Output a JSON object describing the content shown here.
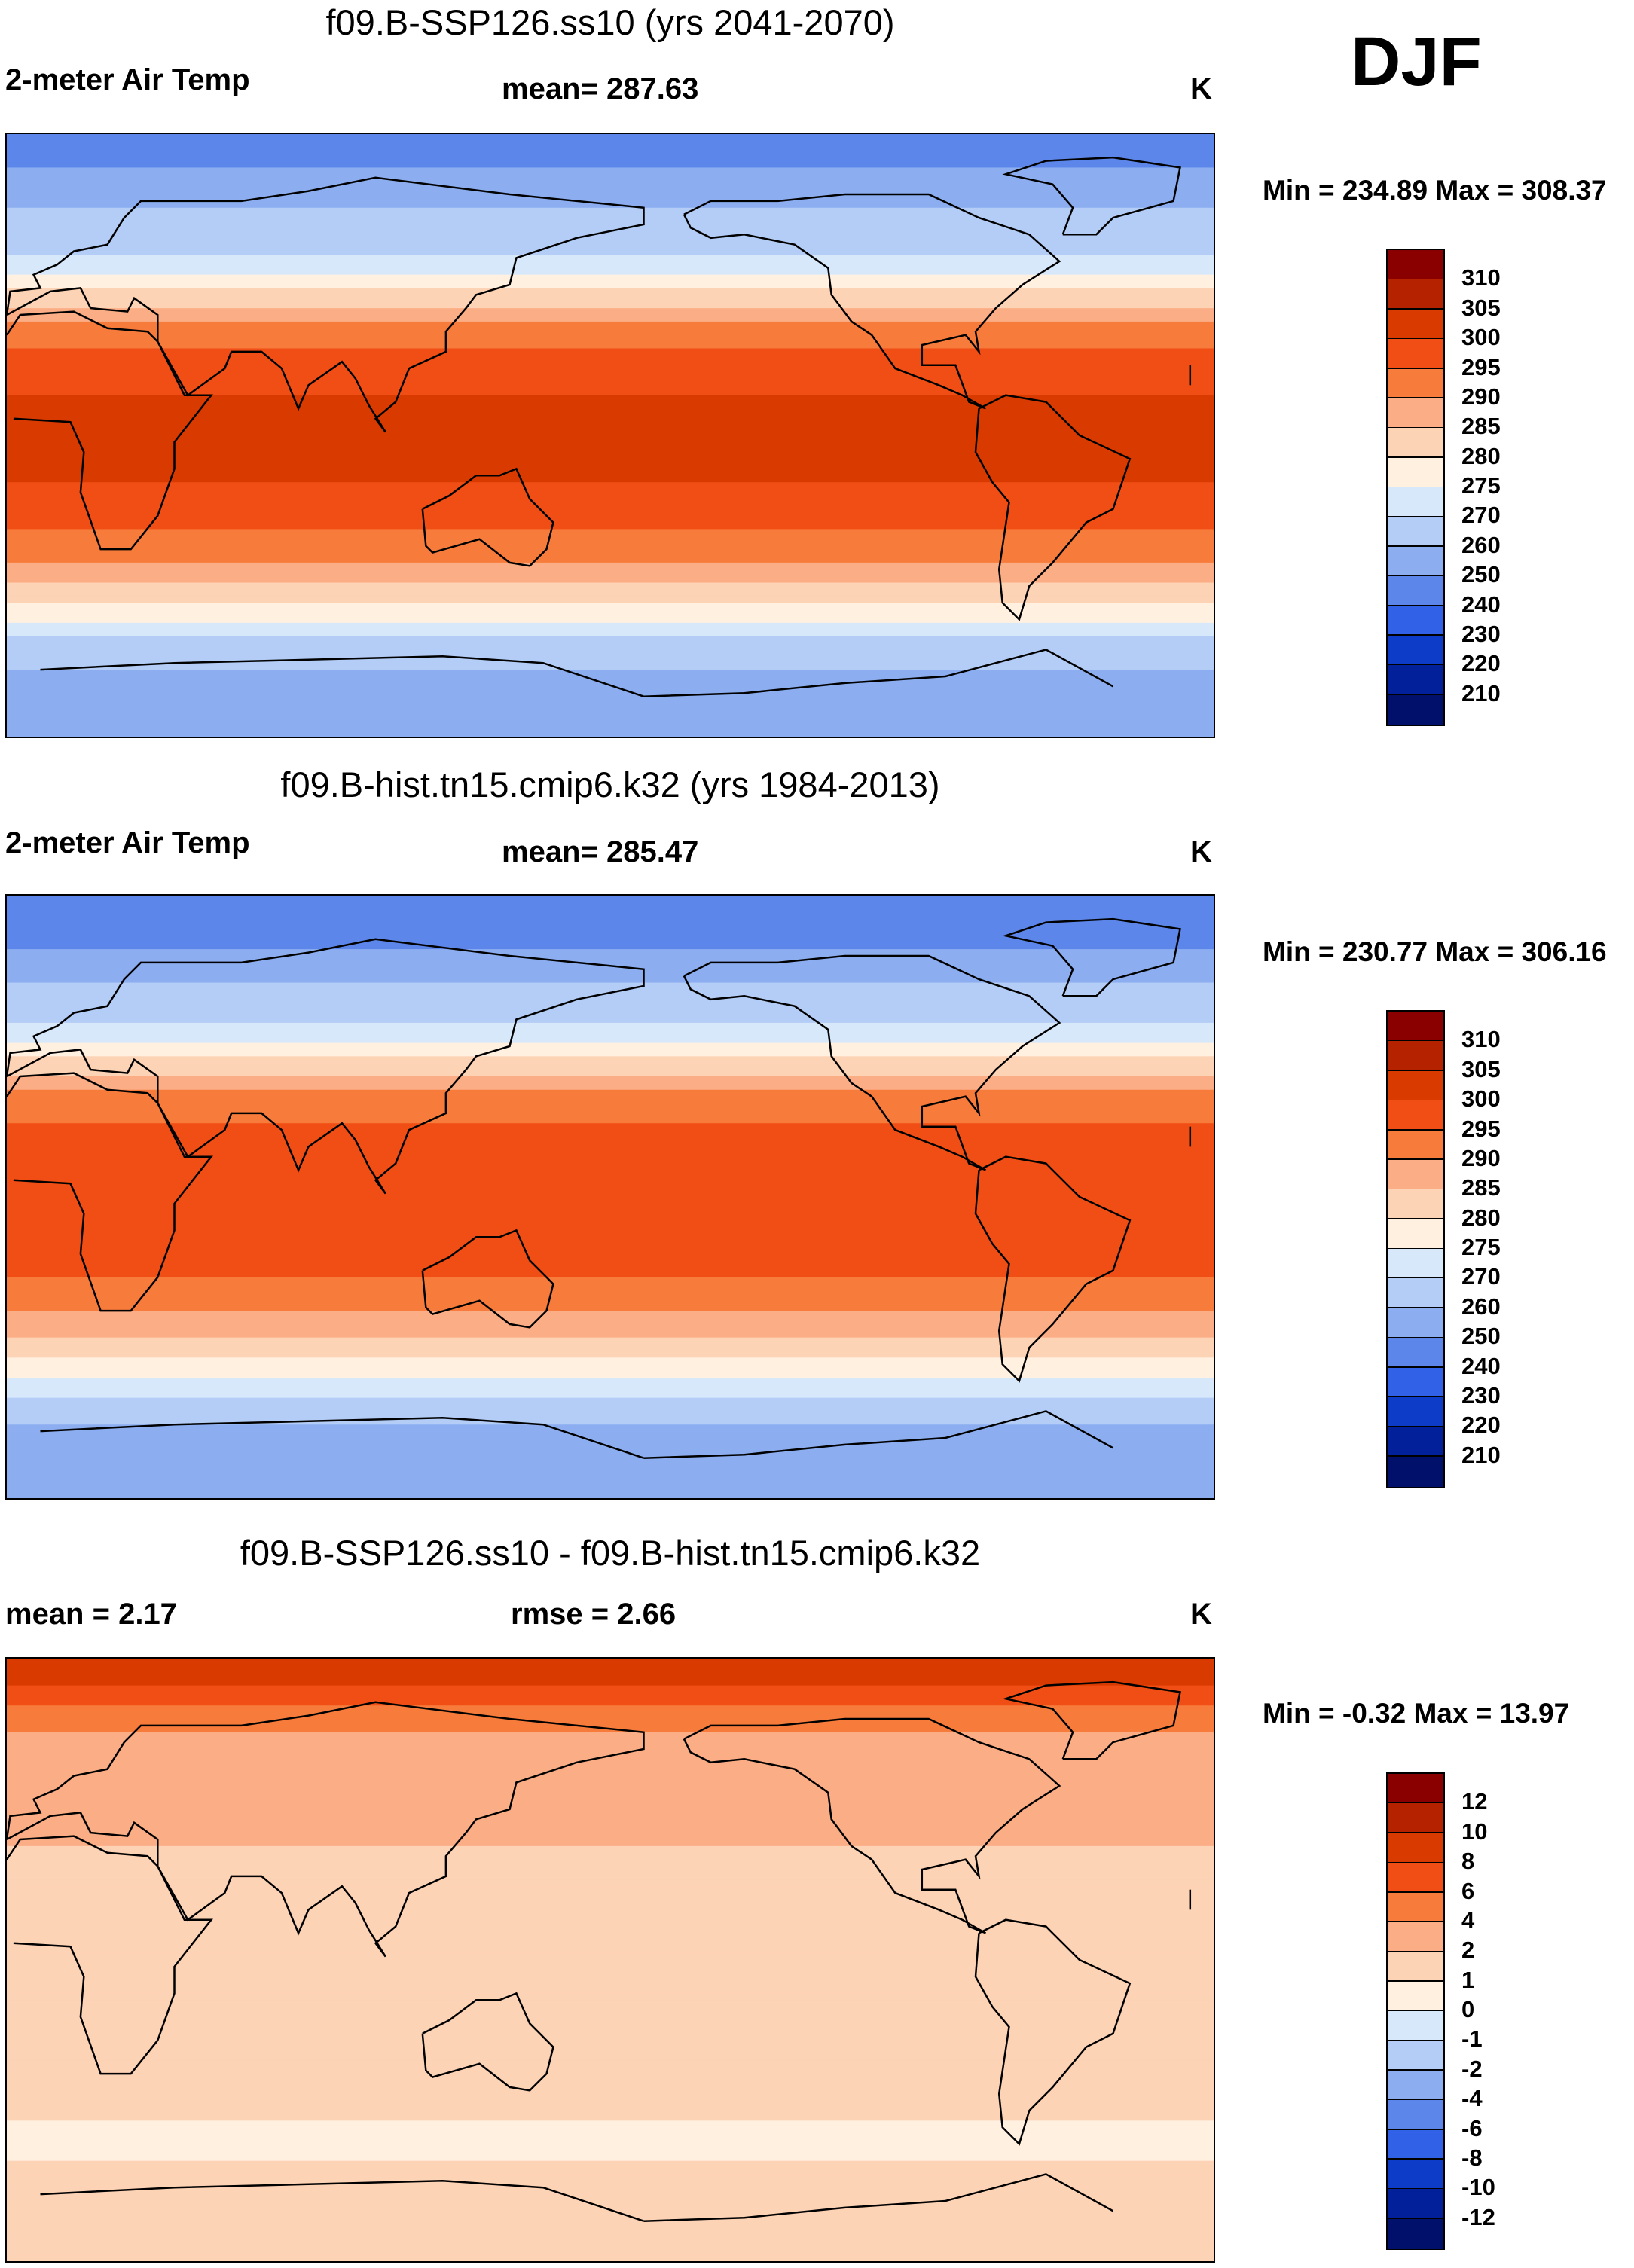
{
  "season_label": "DJF",
  "panels": [
    {
      "id": "future",
      "title": "f09.B-SSP126.ss10 (yrs 2041-2070)",
      "left_label": "2-meter Air Temp",
      "center_label": "mean= 287.63",
      "units": "K",
      "minmax": "Min = 234.89 Max = 308.37",
      "colorbar_labels": [
        "310",
        "305",
        "300",
        "295",
        "290",
        "285",
        "280",
        "275",
        "270",
        "260",
        "250",
        "240",
        "230",
        "220",
        "210"
      ],
      "colorbar_colors": [
        "#8a0000",
        "#b52200",
        "#d83a00",
        "#f04e14",
        "#f77c3c",
        "#fbae86",
        "#fdd3b6",
        "#fff0e0",
        "#d7e8fb",
        "#b4cdf6",
        "#8caef0",
        "#5d86eb",
        "#3161e6",
        "#0d3cc9",
        "#02209a",
        "#00106b"
      ]
    },
    {
      "id": "historical",
      "title": "f09.B-hist.tn15.cmip6.k32 (yrs 1984-2013)",
      "left_label": "2-meter Air Temp",
      "center_label": "mean= 285.47",
      "units": "K",
      "minmax": "Min = 230.77 Max = 306.16",
      "colorbar_labels": [
        "310",
        "305",
        "300",
        "295",
        "290",
        "285",
        "280",
        "275",
        "270",
        "260",
        "250",
        "240",
        "230",
        "220",
        "210"
      ],
      "colorbar_colors": [
        "#8a0000",
        "#b52200",
        "#d83a00",
        "#f04e14",
        "#f77c3c",
        "#fbae86",
        "#fdd3b6",
        "#fff0e0",
        "#d7e8fb",
        "#b4cdf6",
        "#8caef0",
        "#5d86eb",
        "#3161e6",
        "#0d3cc9",
        "#02209a",
        "#00106b"
      ]
    },
    {
      "id": "difference",
      "title": "f09.B-SSP126.ss10 - f09.B-hist.tn15.cmip6.k32",
      "left_label": "mean =   2.17",
      "center_label": "rmse =   2.66",
      "units": "K",
      "minmax": "Min =  -0.32 Max =  13.97",
      "colorbar_labels": [
        "12",
        "10",
        "8",
        "6",
        "4",
        "2",
        "1",
        "0",
        "-1",
        "-2",
        "-4",
        "-6",
        "-8",
        "-10",
        "-12"
      ],
      "colorbar_colors": [
        "#8a0000",
        "#b52200",
        "#d83a00",
        "#f04e14",
        "#f77c3c",
        "#fbae86",
        "#fdd3b6",
        "#fff0e0",
        "#d7e8fb",
        "#b4cdf6",
        "#8caef0",
        "#5d86eb",
        "#3161e6",
        "#0d3cc9",
        "#02209a",
        "#00106b"
      ]
    }
  ],
  "chart_data": [
    {
      "type": "heatmap",
      "title": "f09.B-SSP126.ss10 (yrs 2041-2070)",
      "variable": "2-meter Air Temp",
      "units": "K",
      "mean": 287.63,
      "min": 234.89,
      "max": 308.37,
      "contour_levels": [
        210,
        220,
        230,
        240,
        250,
        260,
        270,
        275,
        280,
        285,
        290,
        295,
        300,
        305,
        310
      ],
      "zonal_bands_by_latitude": [
        {
          "lat": 85,
          "value": 245
        },
        {
          "lat": 75,
          "value": 255
        },
        {
          "lat": 62,
          "value": 265
        },
        {
          "lat": 52,
          "value": 272
        },
        {
          "lat": 42,
          "value": 282
        },
        {
          "lat": 32,
          "value": 292
        },
        {
          "lat": 20,
          "value": 298
        },
        {
          "lat": 5,
          "value": 302
        },
        {
          "lat": -10,
          "value": 301
        },
        {
          "lat": -25,
          "value": 296
        },
        {
          "lat": -38,
          "value": 289
        },
        {
          "lat": -48,
          "value": 280
        },
        {
          "lat": -56,
          "value": 274
        },
        {
          "lat": -64,
          "value": 265
        },
        {
          "lat": -75,
          "value": 255
        }
      ]
    },
    {
      "type": "heatmap",
      "title": "f09.B-hist.tn15.cmip6.k32 (yrs 1984-2013)",
      "variable": "2-meter Air Temp",
      "units": "K",
      "mean": 285.47,
      "min": 230.77,
      "max": 306.16,
      "contour_levels": [
        210,
        220,
        230,
        240,
        250,
        260,
        270,
        275,
        280,
        285,
        290,
        295,
        300,
        305,
        310
      ],
      "zonal_bands_by_latitude": [
        {
          "lat": 85,
          "value": 240
        },
        {
          "lat": 75,
          "value": 250
        },
        {
          "lat": 62,
          "value": 262
        },
        {
          "lat": 52,
          "value": 270
        },
        {
          "lat": 42,
          "value": 280
        },
        {
          "lat": 32,
          "value": 290
        },
        {
          "lat": 20,
          "value": 296
        },
        {
          "lat": 5,
          "value": 300
        },
        {
          "lat": -10,
          "value": 299
        },
        {
          "lat": -25,
          "value": 294
        },
        {
          "lat": -38,
          "value": 287
        },
        {
          "lat": -48,
          "value": 279
        },
        {
          "lat": -56,
          "value": 273
        },
        {
          "lat": -64,
          "value": 262
        },
        {
          "lat": -75,
          "value": 252
        }
      ]
    },
    {
      "type": "heatmap",
      "title": "f09.B-SSP126.ss10 - f09.B-hist.tn15.cmip6.k32",
      "variable": "difference",
      "units": "K",
      "mean": 2.17,
      "rmse": 2.66,
      "min": -0.32,
      "max": 13.97,
      "contour_levels": [
        -12,
        -10,
        -8,
        -6,
        -4,
        -2,
        -1,
        0,
        1,
        2,
        4,
        6,
        8,
        10,
        12
      ],
      "zonal_bands_by_latitude": [
        {
          "lat": 85,
          "value": 9
        },
        {
          "lat": 75,
          "value": 5
        },
        {
          "lat": 62,
          "value": 3
        },
        {
          "lat": 50,
          "value": 2.5
        },
        {
          "lat": 35,
          "value": 2
        },
        {
          "lat": 15,
          "value": 1.5
        },
        {
          "lat": 0,
          "value": 1.5
        },
        {
          "lat": -20,
          "value": 1.5
        },
        {
          "lat": -40,
          "value": 1.2
        },
        {
          "lat": -55,
          "value": 0.8
        },
        {
          "lat": -70,
          "value": 1.5
        }
      ]
    }
  ]
}
